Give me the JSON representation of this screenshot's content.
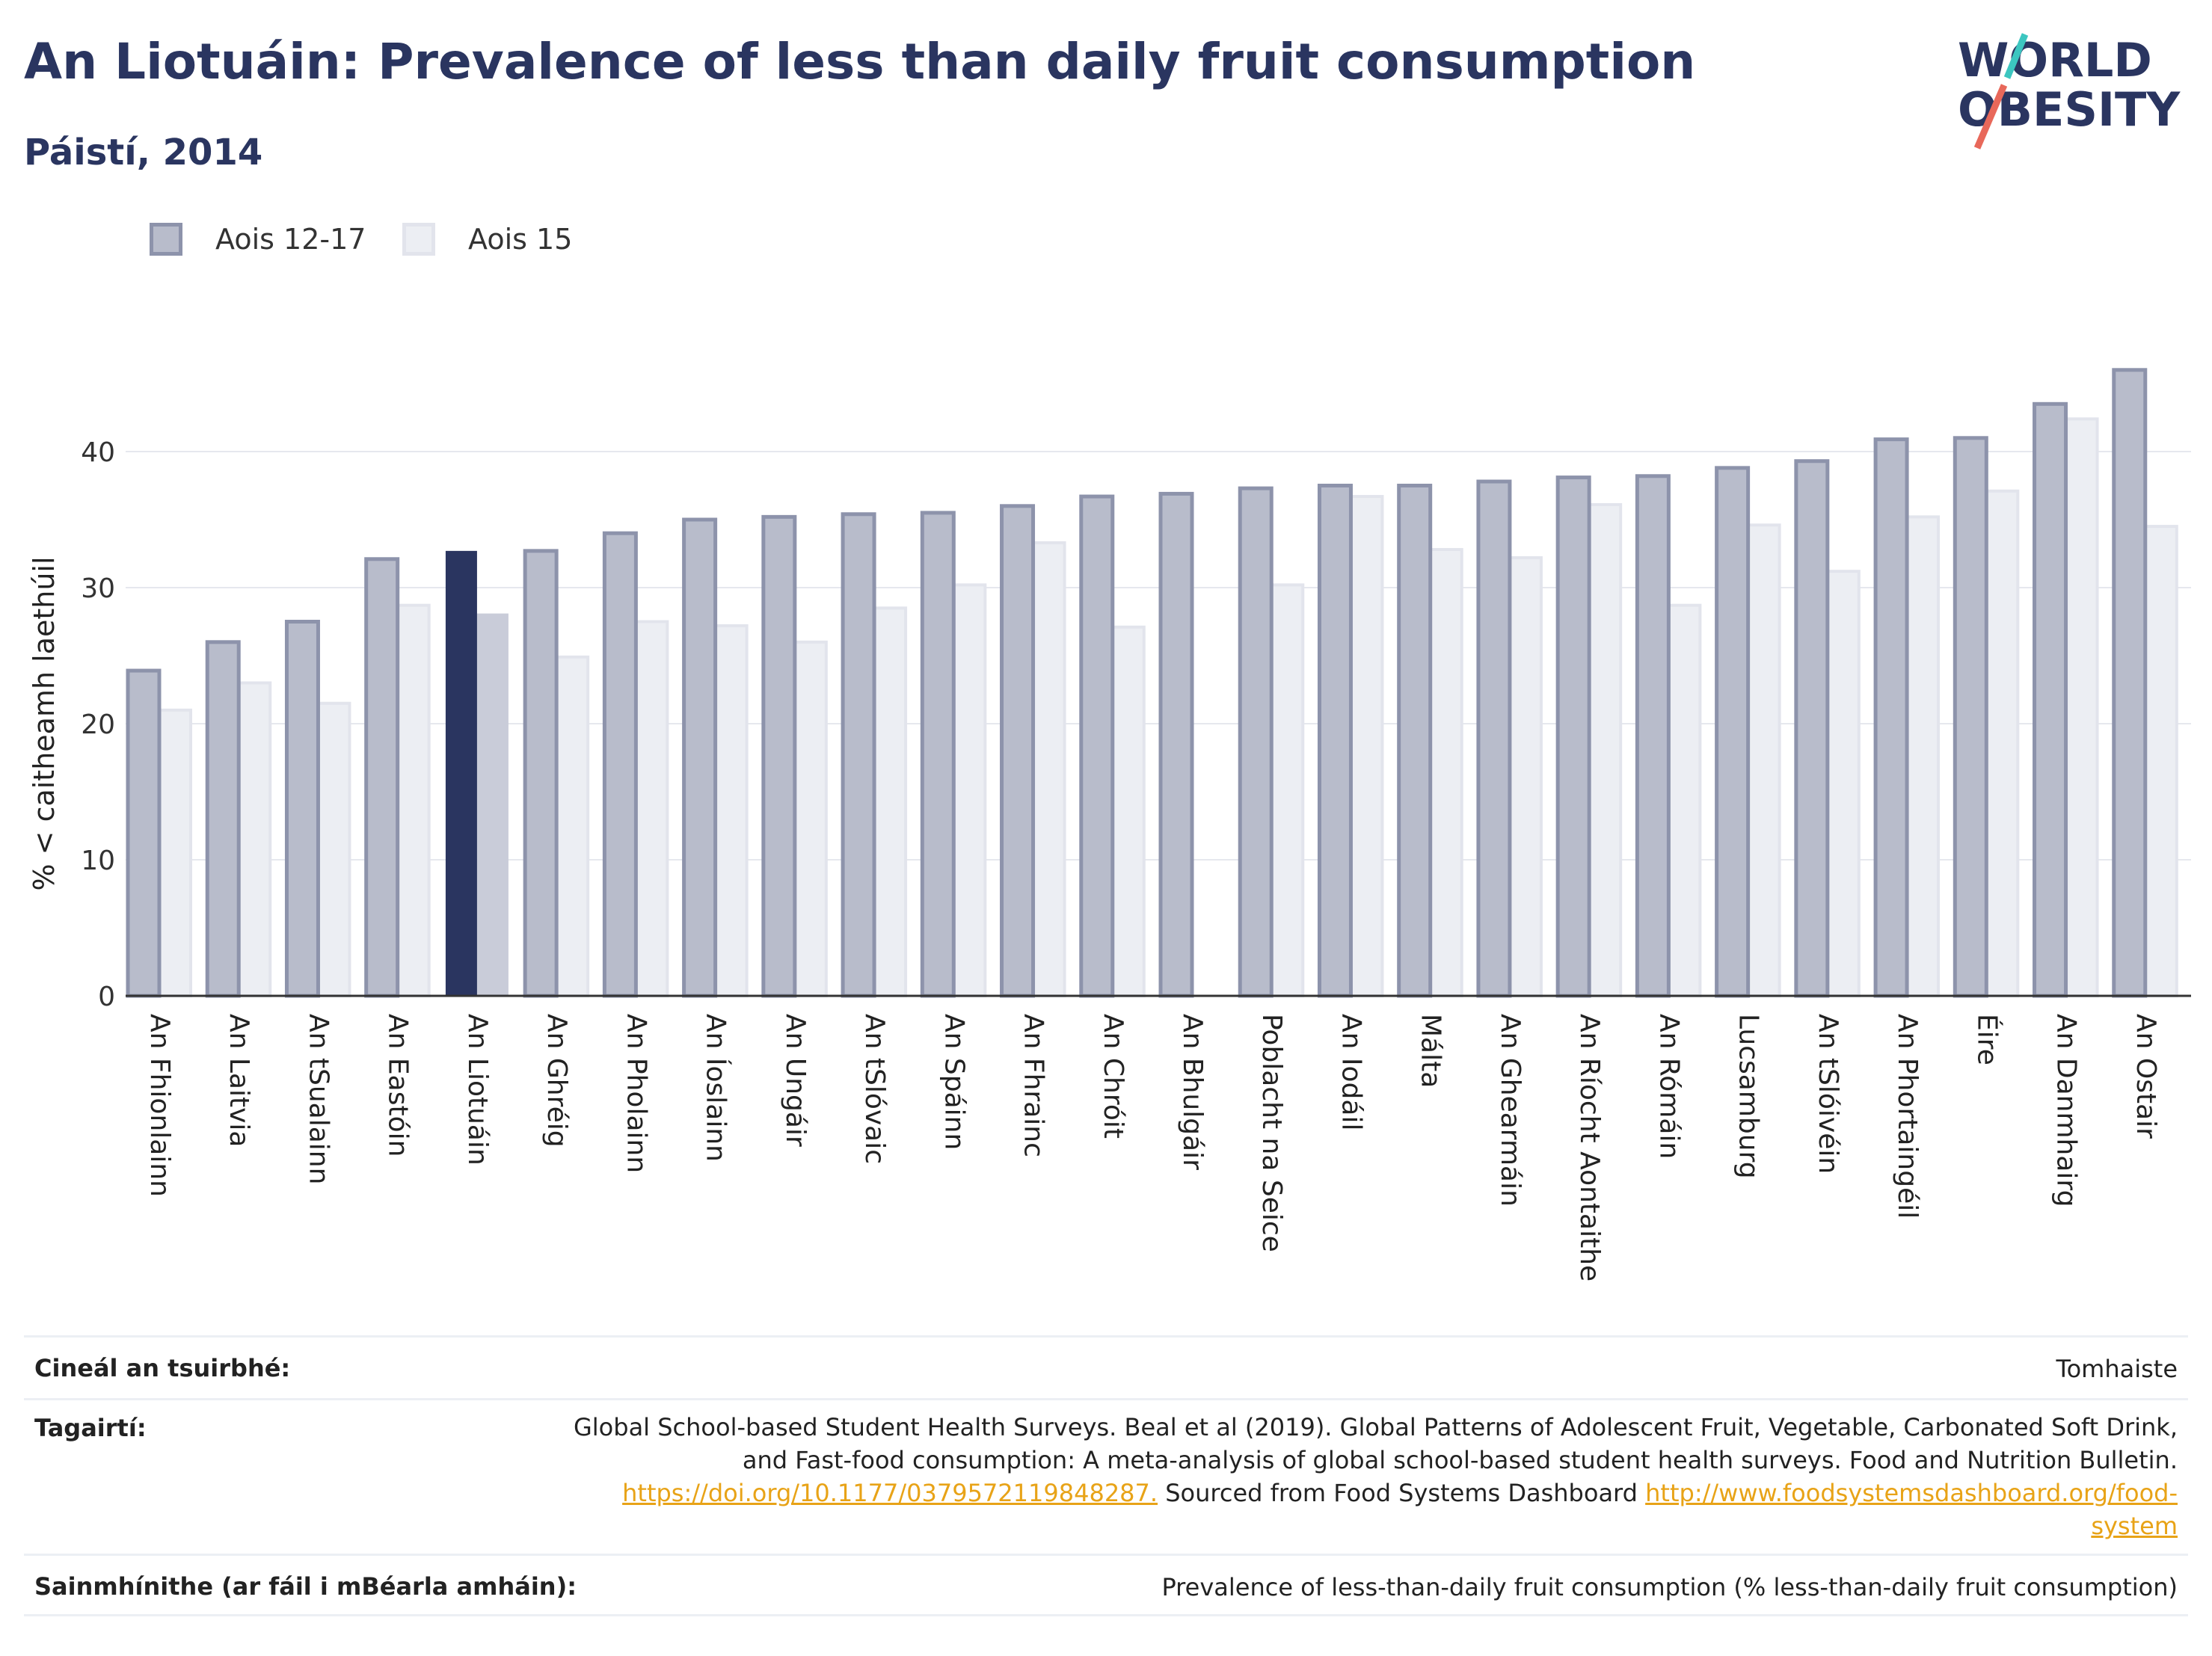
{
  "title": "An Liotuáin: Prevalence of less than daily fruit consumption",
  "subtitle": "Páistí, 2014",
  "logo": {
    "line1": "WORLD",
    "line2": "OBESITY"
  },
  "colors": {
    "series1_fill": "#b8bccb",
    "series1_stroke": "#8d93ab",
    "series2_fill": "#eceef3",
    "series2_stroke": "#e2e4ec",
    "highlight1": "#2a3560",
    "highlight2": "#c9ccd9",
    "title": "#2a3560",
    "link": "#e8a317"
  },
  "legend": [
    {
      "label": "Aois 12-17"
    },
    {
      "label": "Aois 15"
    }
  ],
  "chart_data": {
    "type": "bar",
    "ylabel": "% < caitheamh laethúil",
    "ylim": [
      0,
      48
    ],
    "yticks": [
      0,
      10,
      20,
      30,
      40
    ],
    "grid": true,
    "highlight": "An Liotuáin",
    "categories": [
      "An Fhionlainn",
      "An Laitvia",
      "An tSualainn",
      "An Eastóin",
      "An Liotuáin",
      "An Ghréig",
      "An Pholainn",
      "An Íoslainn",
      "An Ungáir",
      "An tSlóvaic",
      "An Spáinn",
      "An Fhrainc",
      "An Chróit",
      "An Bhulgáir",
      "Poblacht na Seice",
      "An Iodáil",
      "Málta",
      "An Ghearmáin",
      "An Ríocht Aontaithe",
      "An Rómáin",
      "Lucsamburg",
      "An tSlóivéin",
      "An Phortaingéil",
      "Éire",
      "An Danmhairg",
      "An Ostair"
    ],
    "series": [
      {
        "name": "Aois 12-17",
        "values": [
          23.9,
          26.0,
          27.5,
          32.1,
          32.7,
          32.7,
          34.0,
          35.0,
          35.2,
          35.4,
          35.5,
          36.0,
          36.7,
          36.9,
          37.3,
          37.5,
          37.5,
          37.8,
          38.1,
          38.2,
          38.8,
          39.3,
          40.9,
          41.0,
          43.5,
          46.0
        ]
      },
      {
        "name": "Aois 15",
        "values": [
          21.0,
          23.0,
          21.5,
          28.7,
          28.1,
          24.9,
          27.5,
          27.2,
          26.0,
          28.5,
          30.2,
          33.3,
          27.1,
          null,
          30.2,
          36.7,
          32.8,
          32.2,
          36.1,
          28.7,
          34.6,
          31.2,
          35.2,
          37.1,
          42.4,
          34.5
        ]
      }
    ]
  },
  "meta": {
    "survey_type_key": "Cineál an tsuirbhé:",
    "survey_type_value": "Tomhaiste",
    "references_key": "Tagairtí:",
    "references_line1": "Global School-based Student Health Surveys. Beal et al (2019). Global Patterns of Adolescent Fruit, Vegetable, Carbonated Soft Drink,",
    "references_line2": "and Fast-food consumption: A meta-analysis of global school-based student health surveys. Food and Nutrition Bulletin.",
    "references_link1": "https://doi.org/10.1177/0379572119848287.",
    "references_mid": " Sourced from Food Systems Dashboard ",
    "references_link2a": "http://www.foodsystemsdashboard.org/food-",
    "references_link2b": "system",
    "definitions_key": "Sainmhínithe (ar fáil i mBéarla amháin):",
    "definitions_value": "Prevalence of less-than-daily fruit consumption (% less-than-daily fruit consumption)"
  }
}
